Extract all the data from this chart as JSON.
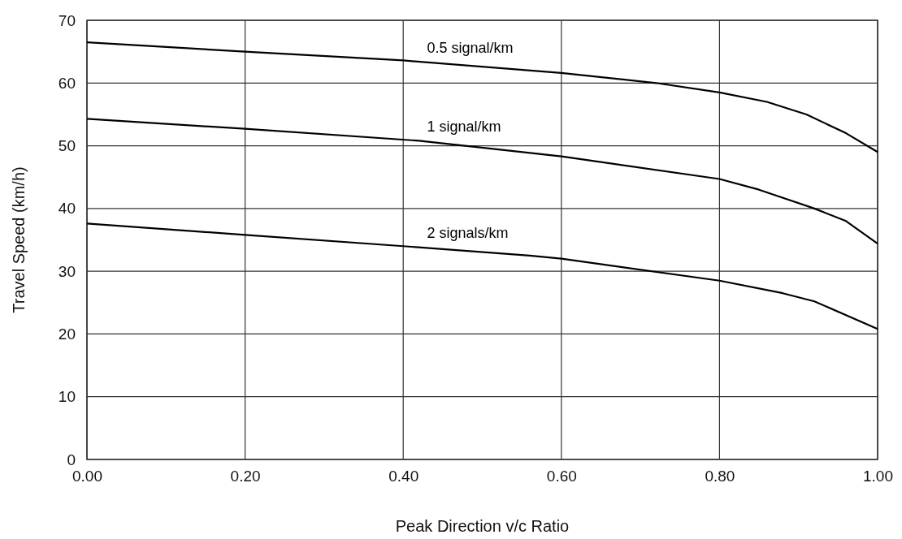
{
  "chart_data": {
    "type": "line",
    "xlabel": "Peak Direction v/c Ratio",
    "ylabel": "Travel Speed (km/h)",
    "xlim": [
      0,
      1
    ],
    "xticks": [
      {
        "value": 0,
        "label": "0.00"
      },
      {
        "value": 0.2,
        "label": "0.20"
      },
      {
        "value": 0.4,
        "label": "0.40"
      },
      {
        "value": 0.6,
        "label": "0.60"
      },
      {
        "value": 0.8,
        "label": "0.80"
      },
      {
        "value": 1,
        "label": "1.00"
      }
    ],
    "ylim": [
      0,
      70
    ],
    "yticks": [
      0,
      10,
      20,
      30,
      40,
      50,
      60,
      70
    ],
    "grid": true,
    "line_style": "solid",
    "marker": "none",
    "series": [
      {
        "name": "0.5 signal/km",
        "color": "#000000",
        "x": [
          0,
          0.2,
          0.4,
          0.6,
          0.72,
          0.8,
          0.86,
          0.91,
          0.96,
          1.0
        ],
        "values": [
          66.5,
          65,
          63.6,
          61.6,
          60,
          58.5,
          57,
          55,
          52,
          49
        ]
      },
      {
        "name": "1 signal/km",
        "color": "#000000",
        "x": [
          0,
          0.2,
          0.42,
          0.6,
          0.8,
          0.85,
          0.92,
          0.96,
          1.0
        ],
        "values": [
          54.3,
          52.7,
          50.8,
          48.3,
          44.7,
          43,
          40,
          38,
          34.4
        ]
      },
      {
        "name": "2 signals/km",
        "color": "#000000",
        "x": [
          0,
          0.2,
          0.4,
          0.56,
          0.6,
          0.8,
          0.88,
          0.92,
          1.0
        ],
        "values": [
          37.6,
          35.8,
          34,
          32.5,
          32,
          28.5,
          26.5,
          25.2,
          20.8
        ]
      }
    ]
  }
}
